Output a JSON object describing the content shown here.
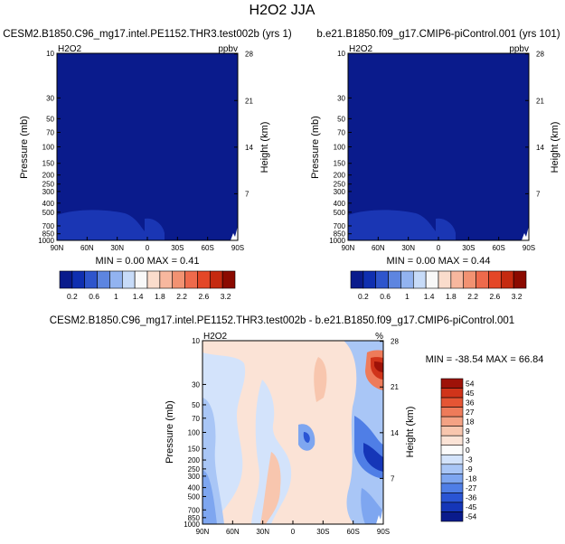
{
  "title": "H2O2 JJA",
  "colors": {
    "top_scale": [
      "#0a1b8c",
      "#0f2fb0",
      "#2e55cc",
      "#5d85e0",
      "#92b3f0",
      "#c7dbf8",
      "#f8f8f8",
      "#fadccc",
      "#f7b79e",
      "#f29272",
      "#ee6a4c",
      "#e44727",
      "#c52a10",
      "#8b0a00"
    ],
    "diff_scale": [
      "#0a1b8c",
      "#1536b8",
      "#2a55d4",
      "#4f7ee6",
      "#7ea6f0",
      "#a9c6f6",
      "#d3e3fb",
      "#fbfbfb",
      "#fbe3d6",
      "#f8c6ae",
      "#f4a284",
      "#ee7b5a",
      "#e55534",
      "#d0341a",
      "#9e1208"
    ]
  },
  "chart_data": [
    {
      "type": "heatmap",
      "name": "panel-1",
      "title": "CESM2.B1850.C96_mg17.intel.PE1152.THR3.test002b (yrs 1)",
      "left_label": "H2O2",
      "right_label": "ppbv",
      "ylabel": "Pressure (mb)",
      "ylabel_right": "Height (km)",
      "x_ticks": [
        "90N",
        "60N",
        "30N",
        "0",
        "30S",
        "60S",
        "90S"
      ],
      "y_ticks": [
        "10",
        "30",
        "50",
        "70",
        "100",
        "150",
        "200",
        "250",
        "300",
        "400",
        "500",
        "700",
        "850",
        "1000"
      ],
      "y2_ticks": [
        "28",
        "21",
        "14",
        "7"
      ],
      "min": "0.00",
      "max": "0.41",
      "stats_text": "MIN =  0.00   MAX =  0.41"
    },
    {
      "type": "heatmap",
      "name": "panel-2",
      "title": "b.e21.B1850.f09_g17.CMIP6-piControl.001 (yrs 101)",
      "left_label": "H2O2",
      "right_label": "ppbv",
      "ylabel": "Pressure (mb)",
      "ylabel_right": "Height (km)",
      "x_ticks": [
        "90N",
        "60N",
        "30N",
        "0",
        "30S",
        "60S",
        "90S"
      ],
      "y_ticks": [
        "10",
        "30",
        "50",
        "70",
        "100",
        "150",
        "200",
        "250",
        "300",
        "400",
        "500",
        "700",
        "850",
        "1000"
      ],
      "y2_ticks": [
        "28",
        "21",
        "14",
        "7"
      ],
      "min": "0.00",
      "max": "0.44",
      "stats_text": "MIN =  0.00   MAX =  0.44"
    },
    {
      "type": "heatmap",
      "name": "panel-diff",
      "title": "CESM2.B1850.C96_mg17.intel.PE1152.THR3.test002b - b.e21.B1850.f09_g17.CMIP6-piControl.001",
      "left_label": "H2O2",
      "right_label": "%",
      "ylabel": "Pressure (mb)",
      "ylabel_right": "Height (km)",
      "x_ticks": [
        "90N",
        "60N",
        "30N",
        "0",
        "30S",
        "60S",
        "90S"
      ],
      "y_ticks": [
        "10",
        "30",
        "50",
        "70",
        "100",
        "150",
        "200",
        "250",
        "300",
        "400",
        "500",
        "700",
        "850",
        "1000"
      ],
      "y2_ticks": [
        "28",
        "21",
        "14",
        "7"
      ],
      "min": "-38.54",
      "max": "66.84",
      "stats_text": "MIN = -38.54   MAX =  66.84"
    }
  ],
  "colorbar_top": {
    "labels": [
      "0.2",
      "0.6",
      "1",
      "1.4",
      "1.8",
      "2.2",
      "2.6",
      "3.2"
    ]
  },
  "colorbar_diff": {
    "labels": [
      "54",
      "45",
      "36",
      "27",
      "18",
      "9",
      "3",
      "0",
      "-3",
      "-9",
      "-18",
      "-27",
      "-36",
      "-45",
      "-54"
    ]
  }
}
